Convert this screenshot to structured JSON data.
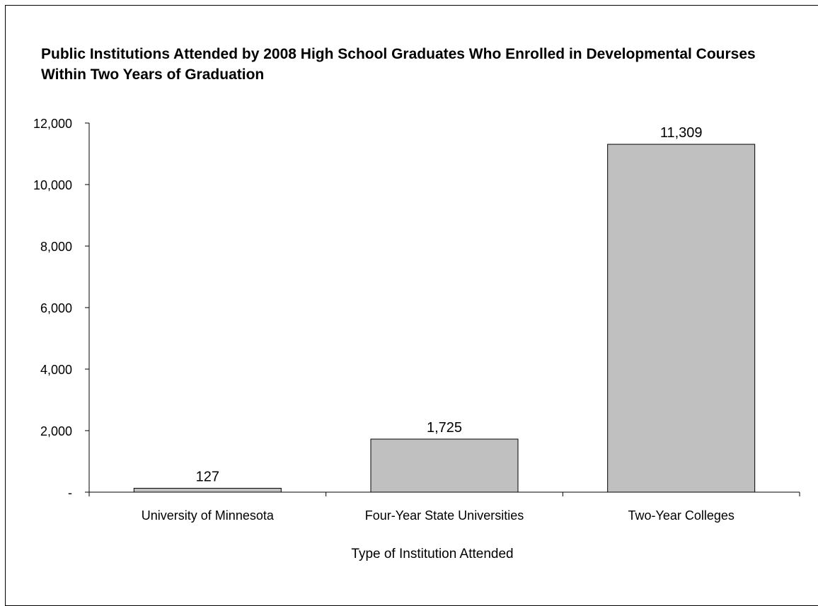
{
  "chart_data": {
    "type": "bar",
    "title": "Public Institutions Attended by 2008 High School Graduates Who Enrolled in Developmental Courses Within Two Years of Graduation",
    "xlabel": "Type of Institution Attended",
    "ylabel": "",
    "categories": [
      "University of Minnesota",
      "Four-Year State Universities",
      "Two-Year Colleges"
    ],
    "values": [
      127,
      1725,
      11309
    ],
    "data_labels": [
      "127",
      "1,725",
      "11,309"
    ],
    "ylim": [
      0,
      12000
    ],
    "yticks": [
      0,
      2000,
      4000,
      6000,
      8000,
      10000,
      12000
    ],
    "ytick_labels": [
      "-",
      "2,000",
      "4,000",
      "6,000",
      "8,000",
      "10,000",
      "12,000"
    ],
    "grid": false,
    "legend": "none",
    "bar_color": "#c0c0c0",
    "bar_edge_color": "#000000"
  }
}
